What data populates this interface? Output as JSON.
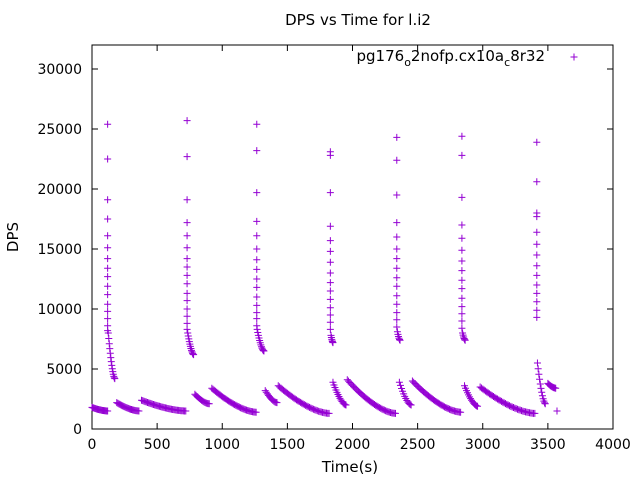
{
  "chart_data": {
    "type": "scatter",
    "title": "DPS vs Time for l.i2",
    "xlabel": "Time(s)",
    "ylabel": "DPS",
    "xlim": [
      0,
      4000
    ],
    "ylim": [
      0,
      32000
    ],
    "xticks": [
      0,
      500,
      1000,
      1500,
      2000,
      2500,
      3000,
      3500,
      4000
    ],
    "yticks": [
      0,
      5000,
      10000,
      15000,
      20000,
      25000,
      30000
    ],
    "grid": false,
    "legend_position": "top-right",
    "marker": "+",
    "series": [
      {
        "name": "pg176_o2nofp.cx10a_c8r32",
        "color": "#9400d3",
        "segments": [
          {
            "kind": "decay",
            "t0": 0,
            "t1": 120,
            "y0": 1800,
            "y1": 1500,
            "n": 18
          },
          {
            "kind": "spike",
            "t": 120,
            "values": [
              25400,
              22500,
              19100,
              17500,
              16100,
              15100,
              14200,
              13400,
              12700,
              11900,
              11200,
              10400,
              9800,
              9200,
              8600,
              8200
            ]
          },
          {
            "kind": "decay",
            "t0": 125,
            "t1": 175,
            "y0": 8000,
            "y1": 4200,
            "n": 14
          },
          {
            "kind": "decay",
            "t0": 190,
            "t1": 360,
            "y0": 2200,
            "y1": 1500,
            "n": 22
          },
          {
            "kind": "decay",
            "t0": 380,
            "t1": 720,
            "y0": 2400,
            "y1": 1500,
            "n": 38
          },
          {
            "kind": "spike",
            "t": 730,
            "values": [
              25700,
              22700,
              19100,
              17200,
              16100,
              15100,
              14200,
              13500,
              12800,
              12100,
              11300,
              10700,
              10000,
              9400,
              8800,
              8300
            ]
          },
          {
            "kind": "decay",
            "t0": 735,
            "t1": 780,
            "y0": 8000,
            "y1": 6200,
            "n": 12
          },
          {
            "kind": "decay",
            "t0": 790,
            "t1": 900,
            "y0": 2900,
            "y1": 2100,
            "n": 14
          },
          {
            "kind": "decay",
            "t0": 920,
            "t1": 1260,
            "y0": 3400,
            "y1": 1400,
            "n": 38
          },
          {
            "kind": "spike",
            "t": 1265,
            "values": [
              25400,
              23200,
              19700,
              17300,
              16100,
              15000,
              14100,
              13300,
              12500,
              11800,
              11000,
              10300,
              9700,
              9200,
              8600
            ]
          },
          {
            "kind": "decay",
            "t0": 1268,
            "t1": 1320,
            "y0": 8300,
            "y1": 6500,
            "n": 12
          },
          {
            "kind": "decay",
            "t0": 1330,
            "t1": 1420,
            "y0": 3200,
            "y1": 2200,
            "n": 12
          },
          {
            "kind": "decay",
            "t0": 1430,
            "t1": 1820,
            "y0": 3600,
            "y1": 1300,
            "n": 40
          },
          {
            "kind": "spike",
            "t": 1830,
            "values": [
              23100,
              22800,
              19700,
              16900,
              15700,
              14800,
              13900,
              13000,
              12200,
              11500,
              10800,
              10100,
              9500,
              8900,
              8300
            ]
          },
          {
            "kind": "decay",
            "t0": 1835,
            "t1": 1850,
            "y0": 7800,
            "y1": 7200,
            "n": 6
          },
          {
            "kind": "decay",
            "t0": 1850,
            "t1": 1950,
            "y0": 3900,
            "y1": 2000,
            "n": 14
          },
          {
            "kind": "decay",
            "t0": 1960,
            "t1": 2330,
            "y0": 4100,
            "y1": 1300,
            "n": 40
          },
          {
            "kind": "spike",
            "t": 2340,
            "values": [
              24300,
              22400,
              19500,
              17200,
              16000,
              15000,
              14200,
              13400,
              12600,
              11900,
              11100,
              10400,
              9700,
              9100,
              8500
            ]
          },
          {
            "kind": "decay",
            "t0": 2345,
            "t1": 2365,
            "y0": 8100,
            "y1": 7400,
            "n": 6
          },
          {
            "kind": "decay",
            "t0": 2360,
            "t1": 2450,
            "y0": 3900,
            "y1": 2000,
            "n": 12
          },
          {
            "kind": "decay",
            "t0": 2460,
            "t1": 2830,
            "y0": 4000,
            "y1": 1400,
            "n": 40
          },
          {
            "kind": "spike",
            "t": 2840,
            "values": [
              24400,
              22800,
              19300,
              17000,
              15900,
              14900,
              14000,
              13200,
              12400,
              11700,
              10900,
              10200,
              9600,
              9000,
              8400
            ]
          },
          {
            "kind": "decay",
            "t0": 2845,
            "t1": 2865,
            "y0": 8000,
            "y1": 7400,
            "n": 6
          },
          {
            "kind": "decay",
            "t0": 2860,
            "t1": 2960,
            "y0": 3600,
            "y1": 1900,
            "n": 14
          },
          {
            "kind": "decay",
            "t0": 2980,
            "t1": 3400,
            "y0": 3500,
            "y1": 1300,
            "n": 42
          },
          {
            "kind": "spike",
            "t": 3415,
            "values": [
              23900,
              20600,
              18000,
              17700,
              16400,
              15400,
              14500,
              13600,
              12800,
              12000,
              11300,
              10600,
              9900,
              9300
            ]
          },
          {
            "kind": "decay",
            "t0": 3420,
            "t1": 3480,
            "y0": 5500,
            "y1": 2100,
            "n": 12
          },
          {
            "kind": "decay",
            "t0": 3500,
            "t1": 3560,
            "y0": 3800,
            "y1": 3400,
            "n": 10
          },
          {
            "kind": "point",
            "t": 3570,
            "y": 1500
          }
        ]
      }
    ]
  }
}
